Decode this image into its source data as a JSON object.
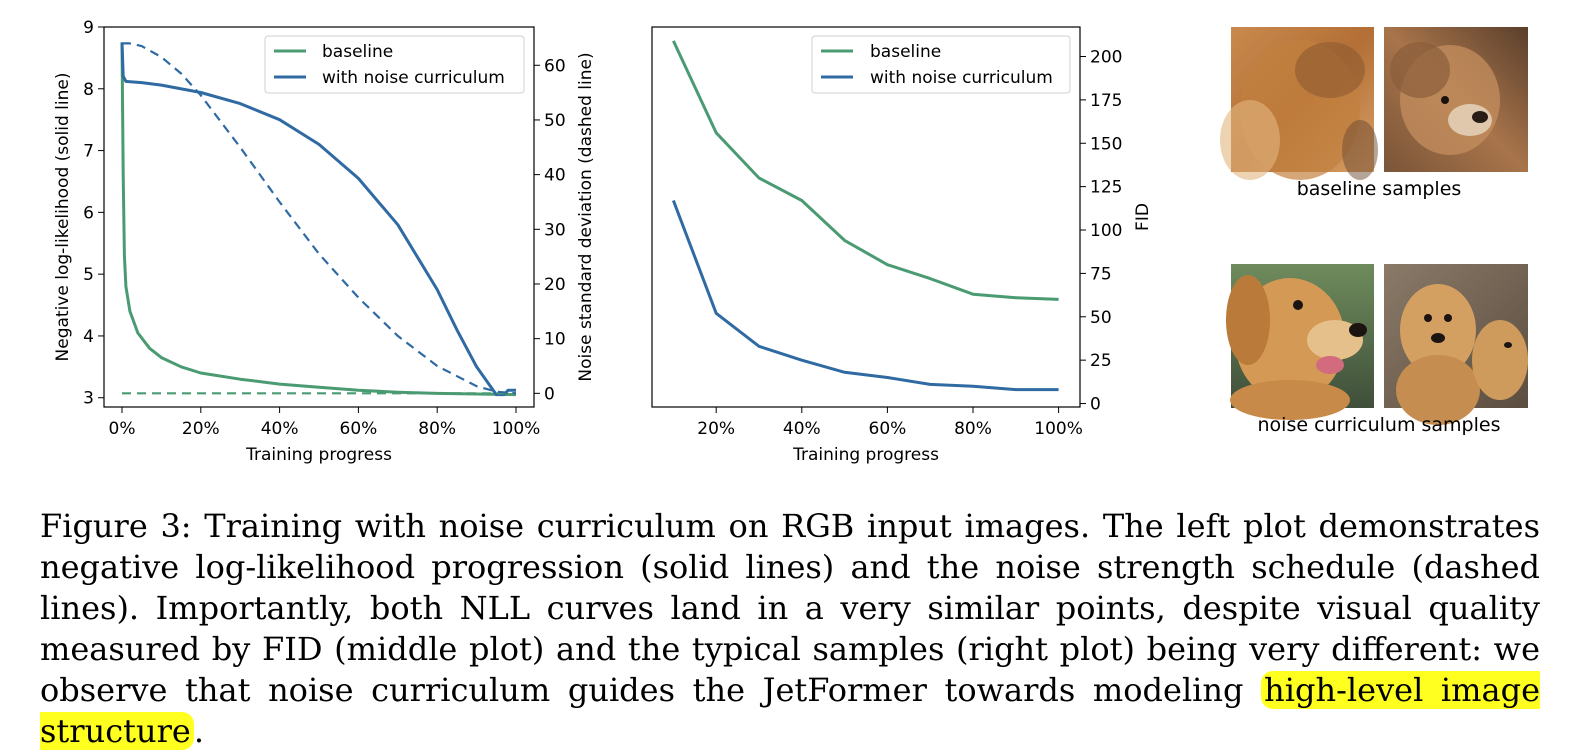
{
  "colors": {
    "baseline": "#4a9a72",
    "noise": "#2f6aa3",
    "highlight": "#ffff20"
  },
  "chart_data": [
    {
      "type": "line",
      "xlabel": "Training progress",
      "ylabel": "Negative log-likelihood (solid line)",
      "y2label": "Noise standard deviation (dashed line)",
      "xlim": [
        0,
        100
      ],
      "ylim": [
        2.85,
        9.0
      ],
      "y2lim": [
        -2.5,
        67
      ],
      "xticks": [
        "0%",
        "20%",
        "40%",
        "60%",
        "80%",
        "100%"
      ],
      "yticks": [
        "3",
        "4",
        "5",
        "6",
        "7",
        "8",
        "9"
      ],
      "y2ticks": [
        "0",
        "10",
        "20",
        "30",
        "40",
        "50",
        "60"
      ],
      "legend": {
        "position": "top-right",
        "entries": [
          "baseline",
          "with noise curriculum"
        ]
      },
      "series": [
        {
          "name": "baseline",
          "axis": "left",
          "style": "solid",
          "x": [
            0,
            0.3,
            0.6,
            1,
            2,
            4,
            7,
            10,
            15,
            20,
            30,
            40,
            50,
            60,
            70,
            80,
            90,
            100
          ],
          "y": [
            8.75,
            6.6,
            5.3,
            4.8,
            4.4,
            4.05,
            3.8,
            3.65,
            3.5,
            3.4,
            3.3,
            3.22,
            3.17,
            3.12,
            3.09,
            3.07,
            3.06,
            3.05
          ]
        },
        {
          "name": "with noise curriculum",
          "axis": "left",
          "style": "solid",
          "x": [
            0,
            0.3,
            1,
            5,
            10,
            20,
            30,
            40,
            50,
            60,
            70,
            80,
            85,
            90,
            95,
            97,
            98,
            100
          ],
          "y": [
            8.75,
            8.2,
            8.12,
            8.1,
            8.06,
            7.94,
            7.76,
            7.5,
            7.1,
            6.55,
            5.8,
            4.75,
            4.1,
            3.5,
            3.05,
            3.05,
            3.12,
            3.12
          ]
        },
        {
          "name": "baseline",
          "axis": "right",
          "style": "dashed",
          "x": [
            0,
            100
          ],
          "y": [
            0,
            0
          ]
        },
        {
          "name": "with noise curriculum",
          "axis": "right",
          "style": "dashed",
          "x": [
            0,
            2,
            5,
            10,
            15,
            20,
            30,
            40,
            50,
            60,
            70,
            80,
            90,
            95,
            100
          ],
          "y": [
            64,
            64,
            63.5,
            61.5,
            58.5,
            54.5,
            45,
            35,
            25.5,
            17.5,
            10.5,
            5,
            1.3,
            0.3,
            0
          ]
        }
      ]
    },
    {
      "type": "line",
      "xlabel": "Training progress",
      "ylabel": "FID",
      "xlim": [
        5,
        105
      ],
      "ylim": [
        -2,
        217
      ],
      "xticks": [
        "20%",
        "40%",
        "60%",
        "80%",
        "100%"
      ],
      "yticks": [
        "0",
        "25",
        "50",
        "75",
        "100",
        "125",
        "150",
        "175",
        "200"
      ],
      "legend": {
        "position": "top-right",
        "entries": [
          "baseline",
          "with noise curriculum"
        ]
      },
      "series": [
        {
          "name": "baseline",
          "x": [
            10,
            20,
            30,
            40,
            50,
            60,
            70,
            80,
            90,
            100
          ],
          "y": [
            209,
            156,
            130,
            117,
            94,
            80,
            72,
            63,
            61,
            60
          ]
        },
        {
          "name": "with noise curriculum",
          "x": [
            10,
            20,
            30,
            40,
            50,
            60,
            70,
            80,
            90,
            100
          ],
          "y": [
            117,
            52,
            33,
            25,
            18,
            15,
            11,
            10,
            8,
            8
          ]
        }
      ]
    }
  ],
  "samples": {
    "baseline_label": "baseline samples",
    "noise_label": "noise curriculum samples"
  },
  "caption": {
    "text": "Figure 3: Training with noise curriculum on RGB input images. The left plot demonstrates negative log-likelihood progression (solid lines) and the noise strength schedule (dashed lines). Importantly, both NLL curves land in a very similar points, despite visual quality measured by FID (middle plot) and the typical samples (right plot) being very different: we observe that noise curriculum guides the JetFormer towards modeling ",
    "highlight": "high-level image structure",
    "end": "."
  }
}
